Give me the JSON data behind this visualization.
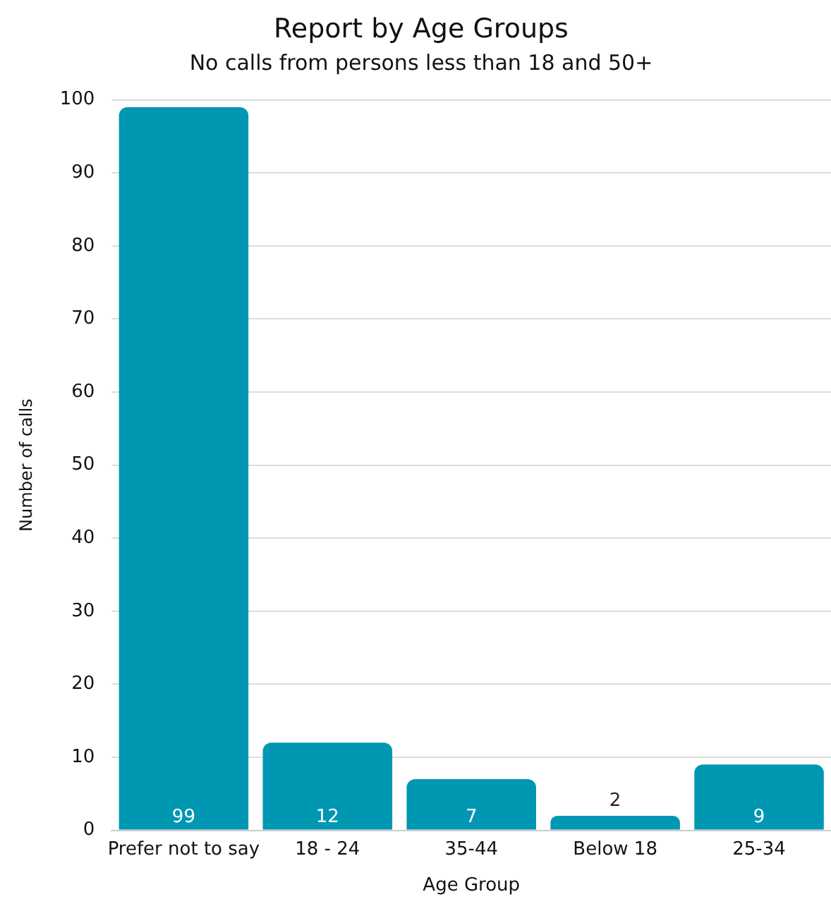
{
  "chart_data": {
    "type": "bar",
    "title": "Report by Age Groups",
    "subtitle": "No calls from persons less than 18 and 50+",
    "xlabel": "Age Group",
    "ylabel": "Number of calls",
    "categories": [
      "Prefer not to say",
      "18 - 24",
      "35-44",
      "Below 18",
      "25-34"
    ],
    "values": [
      99,
      12,
      7,
      2,
      9
    ],
    "color": "#0097b2",
    "ylim": [
      0,
      100
    ],
    "yticks": [
      0,
      10,
      20,
      30,
      40,
      50,
      60,
      70,
      80,
      90,
      100
    ],
    "grid": "y",
    "data_labels": true,
    "legend": false
  }
}
